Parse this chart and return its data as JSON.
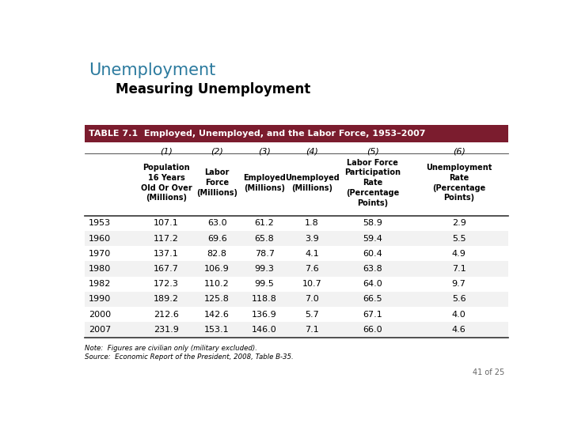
{
  "title1": "Unemployment",
  "title2": "Measuring Unemployment",
  "table_title": "TABLE 7.1  Employed, Unemployed, and the Labor Force, 1953–2007",
  "table_header_bg": "#7B1C2E",
  "table_header_color": "#FFFFFF",
  "col_numbers": [
    "",
    "(1)",
    "(2)",
    "(3)",
    "(4)",
    "(5)",
    "(6)"
  ],
  "col_headers": [
    "",
    "Population\n16 Years\nOld Or Over\n(Millions)",
    "Labor\nForce\n(Millions)",
    "Employed\n(Millions)",
    "Unemployed\n(Millions)",
    "Labor Force\nParticipation\nRate\n(Percentage\nPoints)",
    "Unemployment\nRate\n(Percentage\nPoints)"
  ],
  "rows": [
    [
      "1953",
      "107.1",
      "63.0",
      "61.2",
      "1.8",
      "58.9",
      "2.9"
    ],
    [
      "1960",
      "117.2",
      "69.6",
      "65.8",
      "3.9",
      "59.4",
      "5.5"
    ],
    [
      "1970",
      "137.1",
      "82.8",
      "78.7",
      "4.1",
      "60.4",
      "4.9"
    ],
    [
      "1980",
      "167.7",
      "106.9",
      "99.3",
      "7.6",
      "63.8",
      "7.1"
    ],
    [
      "1982",
      "172.3",
      "110.2",
      "99.5",
      "10.7",
      "64.0",
      "9.7"
    ],
    [
      "1990",
      "189.2",
      "125.8",
      "118.8",
      "7.0",
      "66.5",
      "5.6"
    ],
    [
      "2000",
      "212.6",
      "142.6",
      "136.9",
      "5.7",
      "67.1",
      "4.0"
    ],
    [
      "2007",
      "231.9",
      "153.1",
      "146.0",
      "7.1",
      "66.0",
      "4.6"
    ]
  ],
  "note_line1": "Note:  Figures are civilian only (military excluded).",
  "note_line2": "Source:  Economic Report of the President, 2008, Table B-35.",
  "page_num": "41 of 25",
  "bg_color": "#FFFFFF",
  "title1_color": "#2B7A9E",
  "title2_color": "#000000",
  "row_bg_colors": [
    "#FFFFFF",
    "#F2F2F2"
  ],
  "dark_border_color": "#333333"
}
